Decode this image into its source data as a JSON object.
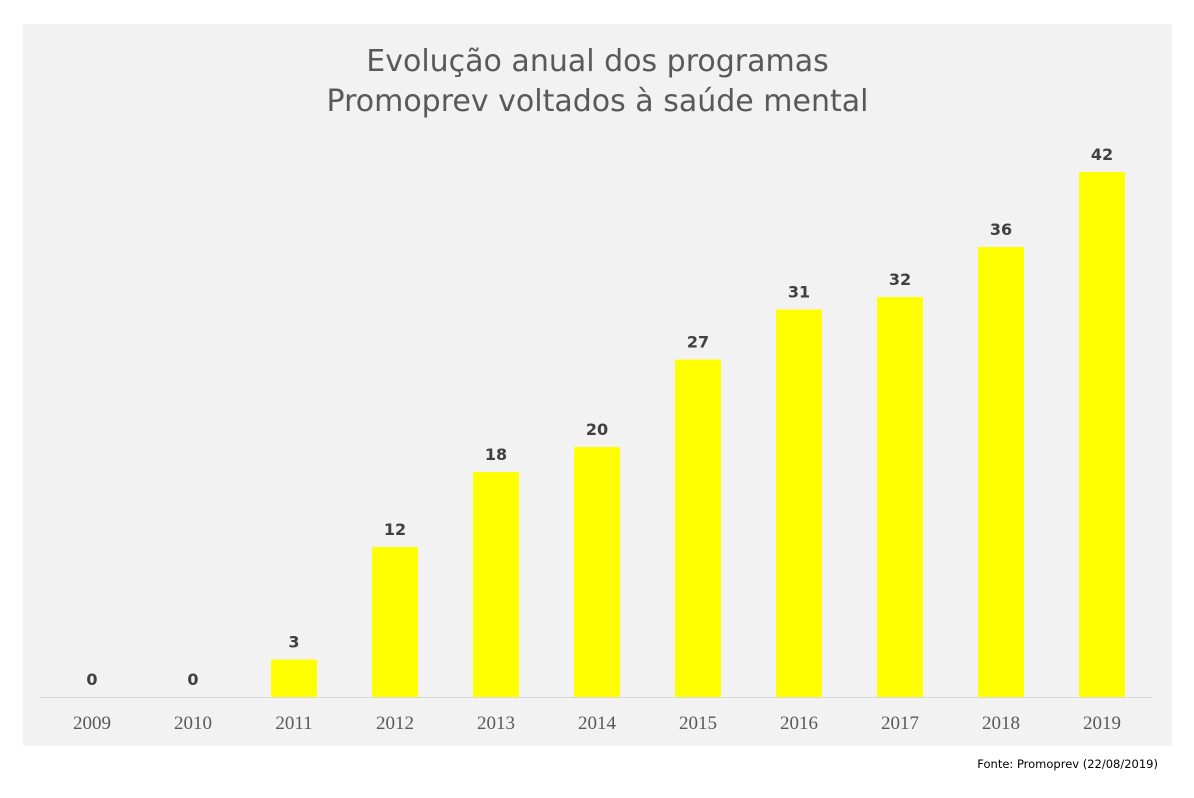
{
  "chart_data": {
    "type": "bar",
    "title_lines": [
      "Evolução anual dos programas",
      "Promoprev voltados à saúde mental"
    ],
    "categories": [
      "2009",
      "2010",
      "2011",
      "2012",
      "2013",
      "2014",
      "2015",
      "2016",
      "2017",
      "2018",
      "2019"
    ],
    "values": [
      0,
      0,
      3,
      12,
      18,
      20,
      27,
      31,
      32,
      36,
      42
    ],
    "xlabel": "",
    "ylabel": "",
    "ylim": [
      0,
      42
    ],
    "grid": false,
    "legend": "none",
    "data_labels": true,
    "colors": {
      "bar": "#ffff00",
      "background": "#f2f2f2",
      "title": "#595959",
      "label": "#404040",
      "tick": "#595959",
      "axis": "#d9d9d9"
    }
  },
  "source": "Fonte: Promoprev (22/08/2019)"
}
